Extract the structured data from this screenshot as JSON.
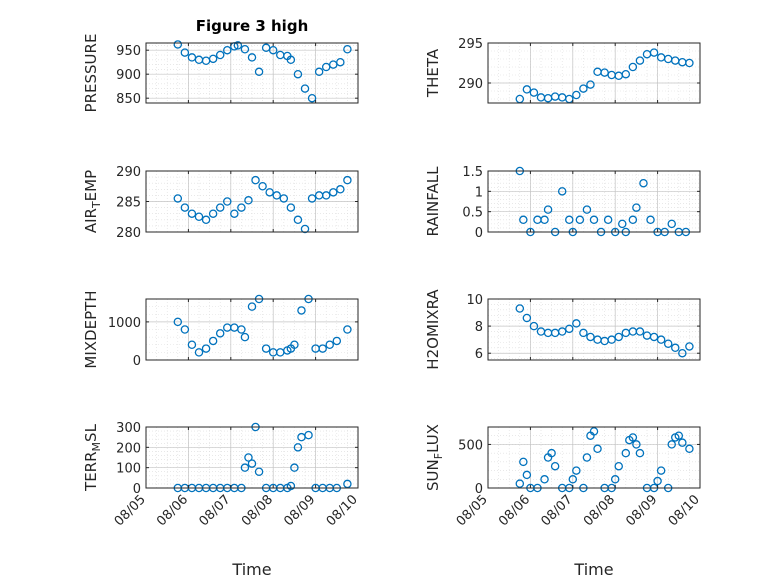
{
  "figure": {
    "title": "Figure 3 high",
    "xlabel": "Time",
    "x_ticks": [
      "08/05",
      "08/06",
      "08/07",
      "08/08",
      "08/09",
      "08/10"
    ],
    "marker_color": "#0072BD"
  },
  "chart_data": [
    {
      "type": "scatter",
      "ylabel": "PRESSURE",
      "ylim": [
        840,
        965
      ],
      "yticks": [
        850,
        900,
        950
      ],
      "grid": true,
      "x": [
        "08/05 18:00",
        "08/05 22:00",
        "08/06 02:00",
        "08/06 06:00",
        "08/06 10:00",
        "08/06 14:00",
        "08/06 18:00",
        "08/06 22:00",
        "08/07 02:00",
        "08/07 04:00",
        "08/07 08:00",
        "08/07 12:00",
        "08/07 16:00",
        "08/07 20:00",
        "08/08 00:00",
        "08/08 04:00",
        "08/08 08:00",
        "08/08 10:00",
        "08/08 14:00",
        "08/08 18:00",
        "08/08 22:00",
        "08/09 02:00",
        "08/09 06:00",
        "08/09 10:00",
        "08/09 14:00",
        "08/09 18:00"
      ],
      "y": [
        962,
        945,
        935,
        930,
        928,
        932,
        940,
        950,
        958,
        960,
        952,
        935,
        905,
        955,
        950,
        940,
        938,
        930,
        900,
        870,
        850,
        905,
        915,
        920,
        925,
        952
      ]
    },
    {
      "type": "scatter",
      "ylabel": "THETA",
      "ylim": [
        287.5,
        295
      ],
      "yticks": [
        290,
        295
      ],
      "grid": true,
      "x": [
        "08/05 18:00",
        "08/05 22:00",
        "08/06 02:00",
        "08/06 06:00",
        "08/06 10:00",
        "08/06 14:00",
        "08/06 18:00",
        "08/06 22:00",
        "08/07 02:00",
        "08/07 06:00",
        "08/07 10:00",
        "08/07 14:00",
        "08/07 18:00",
        "08/07 22:00",
        "08/08 02:00",
        "08/08 06:00",
        "08/08 10:00",
        "08/08 14:00",
        "08/08 18:00",
        "08/08 22:00",
        "08/09 02:00",
        "08/09 06:00",
        "08/09 10:00",
        "08/09 14:00",
        "08/09 18:00"
      ],
      "y": [
        288,
        289.2,
        288.8,
        288.2,
        288.1,
        288.3,
        288.2,
        288,
        288.5,
        289.3,
        289.8,
        291.4,
        291.3,
        291,
        290.9,
        291.1,
        292,
        292.8,
        293.6,
        293.8,
        293.2,
        293,
        292.8,
        292.6,
        292.5
      ]
    },
    {
      "type": "scatter",
      "ylabel": "AIR_TEMP",
      "ylim": [
        280,
        290
      ],
      "yticks": [
        280,
        285,
        290
      ],
      "grid": true,
      "x": [
        "08/05 18:00",
        "08/05 22:00",
        "08/06 02:00",
        "08/06 06:00",
        "08/06 10:00",
        "08/06 14:00",
        "08/06 18:00",
        "08/06 22:00",
        "08/07 02:00",
        "08/07 06:00",
        "08/07 10:00",
        "08/07 14:00",
        "08/07 18:00",
        "08/07 22:00",
        "08/08 02:00",
        "08/08 06:00",
        "08/08 10:00",
        "08/08 14:00",
        "08/08 18:00",
        "08/08 22:00",
        "08/09 02:00",
        "08/09 06:00",
        "08/09 10:00",
        "08/09 14:00",
        "08/09 18:00"
      ],
      "y": [
        285.5,
        284,
        283,
        282.5,
        282,
        283,
        284,
        285,
        283,
        284,
        285.2,
        288.5,
        287.5,
        286.5,
        286,
        285.5,
        284,
        282,
        280.5,
        285.5,
        286,
        286,
        286.5,
        287,
        288.5
      ]
    },
    {
      "type": "scatter",
      "ylabel": "RAINFALL",
      "ylim": [
        0,
        1.5
      ],
      "yticks": [
        0,
        0.5,
        1,
        1.5
      ],
      "grid": true,
      "x": [
        "08/05 18:00",
        "08/05 20:00",
        "08/06 00:00",
        "08/06 04:00",
        "08/06 08:00",
        "08/06 10:00",
        "08/06 14:00",
        "08/06 18:00",
        "08/06 22:00",
        "08/07 00:00",
        "08/07 04:00",
        "08/07 08:00",
        "08/07 12:00",
        "08/07 16:00",
        "08/07 20:00",
        "08/08 00:00",
        "08/08 04:00",
        "08/08 06:00",
        "08/08 10:00",
        "08/08 12:00",
        "08/08 16:00",
        "08/08 20:00",
        "08/09 00:00",
        "08/09 04:00",
        "08/09 08:00",
        "08/09 12:00",
        "08/09 16:00"
      ],
      "y": [
        1.5,
        0.3,
        0,
        0.3,
        0.3,
        0.55,
        0,
        1,
        0.3,
        0,
        0.3,
        0.55,
        0.3,
        0,
        0.3,
        0,
        0.2,
        0,
        0.3,
        0.6,
        1.2,
        0.3,
        0,
        0,
        0.2,
        0,
        0
      ]
    },
    {
      "type": "scatter",
      "ylabel": "MIXDEPTH",
      "ylim": [
        0,
        1600
      ],
      "yticks": [
        0,
        1000
      ],
      "grid": true,
      "x": [
        "08/05 18:00",
        "08/05 22:00",
        "08/06 02:00",
        "08/06 06:00",
        "08/06 10:00",
        "08/06 14:00",
        "08/06 18:00",
        "08/06 22:00",
        "08/07 02:00",
        "08/07 06:00",
        "08/07 08:00",
        "08/07 12:00",
        "08/07 16:00",
        "08/07 20:00",
        "08/08 00:00",
        "08/08 04:00",
        "08/08 08:00",
        "08/08 10:00",
        "08/08 12:00",
        "08/08 16:00",
        "08/08 20:00",
        "08/09 00:00",
        "08/09 04:00",
        "08/09 08:00",
        "08/09 12:00",
        "08/09 18:00"
      ],
      "y": [
        1000,
        800,
        400,
        200,
        300,
        500,
        700,
        850,
        850,
        800,
        600,
        1400,
        1600,
        300,
        200,
        200,
        250,
        300,
        400,
        1300,
        1600,
        300,
        300,
        400,
        500,
        800
      ]
    },
    {
      "type": "scatter",
      "ylabel": "H2OMIXRA",
      "ylim": [
        5.5,
        10
      ],
      "yticks": [
        6,
        8,
        10
      ],
      "grid": true,
      "x": [
        "08/05 18:00",
        "08/05 22:00",
        "08/06 02:00",
        "08/06 06:00",
        "08/06 10:00",
        "08/06 14:00",
        "08/06 18:00",
        "08/06 22:00",
        "08/07 02:00",
        "08/07 06:00",
        "08/07 10:00",
        "08/07 14:00",
        "08/07 18:00",
        "08/07 22:00",
        "08/08 02:00",
        "08/08 06:00",
        "08/08 10:00",
        "08/08 14:00",
        "08/08 18:00",
        "08/08 22:00",
        "08/09 02:00",
        "08/09 06:00",
        "08/09 10:00",
        "08/09 14:00",
        "08/09 18:00"
      ],
      "y": [
        9.3,
        8.6,
        8,
        7.6,
        7.5,
        7.5,
        7.6,
        7.8,
        8.2,
        7.5,
        7.2,
        7,
        6.9,
        7,
        7.2,
        7.5,
        7.6,
        7.6,
        7.3,
        7.2,
        7,
        6.7,
        6.4,
        6,
        6.5
      ]
    },
    {
      "type": "scatter",
      "ylabel": "TERR_MSL",
      "ylim": [
        0,
        300
      ],
      "yticks": [
        0,
        100,
        200,
        300
      ],
      "grid": true,
      "x": [
        "08/05 18:00",
        "08/05 22:00",
        "08/06 02:00",
        "08/06 06:00",
        "08/06 10:00",
        "08/06 14:00",
        "08/06 18:00",
        "08/06 22:00",
        "08/07 02:00",
        "08/07 06:00",
        "08/07 08:00",
        "08/07 10:00",
        "08/07 12:00",
        "08/07 14:00",
        "08/07 16:00",
        "08/07 20:00",
        "08/08 00:00",
        "08/08 04:00",
        "08/08 08:00",
        "08/08 10:00",
        "08/08 12:00",
        "08/08 14:00",
        "08/08 16:00",
        "08/08 20:00",
        "08/09 00:00",
        "08/09 04:00",
        "08/09 08:00",
        "08/09 12:00",
        "08/09 18:00"
      ],
      "y": [
        0,
        0,
        0,
        0,
        0,
        0,
        0,
        0,
        0,
        0,
        100,
        150,
        120,
        300,
        80,
        0,
        0,
        0,
        0,
        10,
        100,
        200,
        250,
        260,
        0,
        0,
        0,
        0,
        20
      ]
    },
    {
      "type": "scatter",
      "ylabel": "SUN_FLUX",
      "ylim": [
        0,
        700
      ],
      "yticks": [
        0,
        500
      ],
      "grid": true,
      "x": [
        "08/05 18:00",
        "08/05 20:00",
        "08/05 22:00",
        "08/06 00:00",
        "08/06 04:00",
        "08/06 08:00",
        "08/06 10:00",
        "08/06 12:00",
        "08/06 14:00",
        "08/06 18:00",
        "08/06 22:00",
        "08/07 00:00",
        "08/07 02:00",
        "08/07 06:00",
        "08/07 08:00",
        "08/07 10:00",
        "08/07 12:00",
        "08/07 14:00",
        "08/07 18:00",
        "08/07 22:00",
        "08/08 00:00",
        "08/08 02:00",
        "08/08 06:00",
        "08/08 08:00",
        "08/08 10:00",
        "08/08 12:00",
        "08/08 14:00",
        "08/08 18:00",
        "08/08 22:00",
        "08/09 00:00",
        "08/09 02:00",
        "08/09 06:00",
        "08/09 08:00",
        "08/09 10:00",
        "08/09 12:00",
        "08/09 14:00",
        "08/09 18:00"
      ],
      "y": [
        50,
        300,
        150,
        0,
        0,
        100,
        350,
        400,
        250,
        0,
        0,
        100,
        200,
        0,
        350,
        600,
        650,
        450,
        0,
        0,
        100,
        250,
        400,
        550,
        580,
        500,
        400,
        0,
        0,
        80,
        200,
        0,
        500,
        580,
        600,
        520,
        450
      ]
    }
  ]
}
